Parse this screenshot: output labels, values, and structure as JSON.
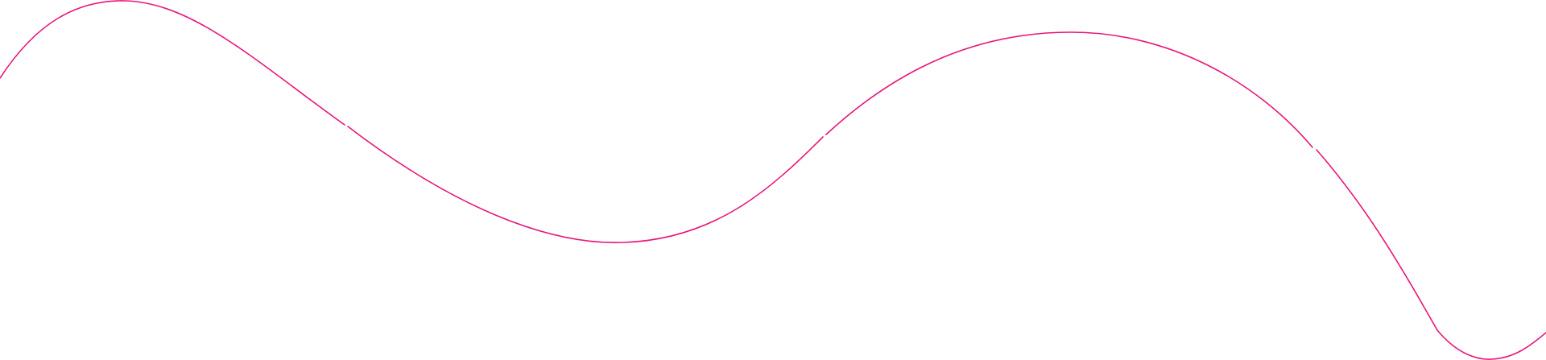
{
  "decoration": {
    "type": "wavy-line",
    "stroke_color": "#e8177a",
    "background_color": "#ffffff"
  }
}
